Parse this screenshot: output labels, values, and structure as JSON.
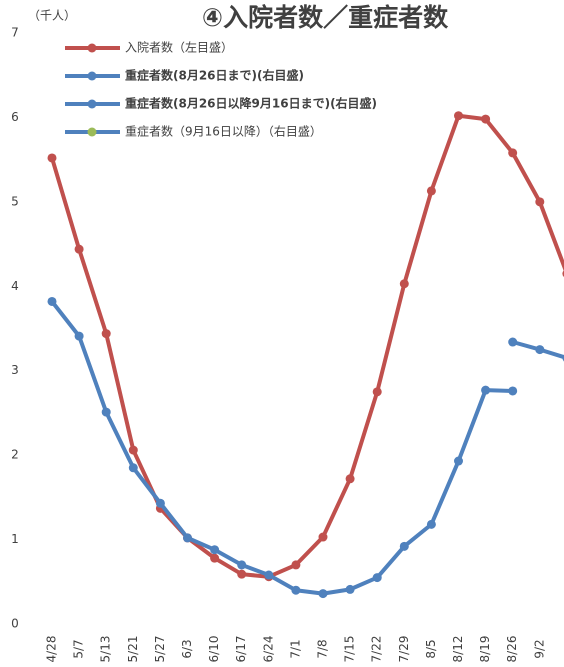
{
  "chart_data": {
    "type": "line",
    "title": "④入院者数／重症者数",
    "y_label": "（千人）",
    "categories": [
      "4/28",
      "5/7",
      "5/13",
      "5/21",
      "5/27",
      "6/3",
      "6/10",
      "6/17",
      "6/24",
      "7/1",
      "7/8",
      "7/15",
      "7/22",
      "7/29",
      "8/5",
      "8/12",
      "8/19",
      "8/26",
      "9/2",
      null
    ],
    "ylim": [
      0,
      7
    ],
    "yticks": [
      0,
      1,
      2,
      3,
      4,
      5,
      6,
      7
    ],
    "series": [
      {
        "name": "入院者数（左目盛）",
        "color": "#c0504d",
        "values": [
          5.52,
          4.44,
          3.44,
          2.06,
          1.37,
          1.02,
          0.78,
          0.59,
          0.56,
          0.7,
          1.03,
          1.72,
          2.75,
          4.03,
          5.13,
          6.02,
          5.98,
          5.58,
          5.0,
          4.15
        ]
      },
      {
        "name": "重症者数(8月26日まで)(右目盛)",
        "color": "#4f81bd",
        "values": [
          3.82,
          3.41,
          2.51,
          1.85,
          1.43,
          1.02,
          0.88,
          0.7,
          0.58,
          0.4,
          0.36,
          0.41,
          0.55,
          0.92,
          1.18,
          1.93,
          2.77,
          2.76,
          null,
          null
        ]
      },
      {
        "name": "重症者数(8月26日以降9月16日まで)(右目盛)",
        "color": "#4f81bd",
        "values": [
          null,
          null,
          null,
          null,
          null,
          null,
          null,
          null,
          null,
          null,
          null,
          null,
          null,
          null,
          null,
          null,
          null,
          3.34,
          3.25,
          3.15
        ]
      },
      {
        "name": "重症者数（9月16日以降）（右目盛）",
        "color": "#4f81bd",
        "values": [
          null,
          null,
          null,
          null,
          null,
          null,
          null,
          null,
          null,
          null,
          null,
          null,
          null,
          null,
          null,
          null,
          null,
          null,
          null,
          null
        ]
      }
    ]
  }
}
